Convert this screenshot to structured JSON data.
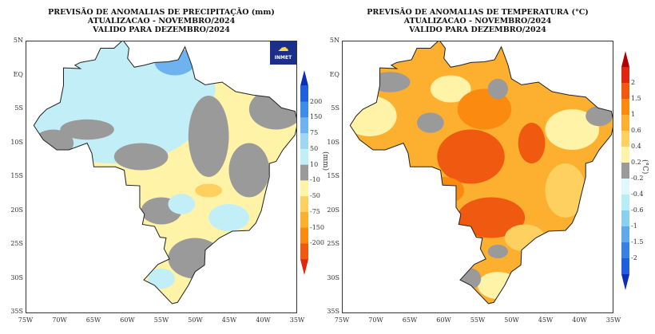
{
  "left_map": {
    "title_lines": [
      "PREVISÃO DE ANOMALIAS DE PRECIPITAÇÃO (mm)",
      "ATUALIZACAO - NOVEMBRO/2024",
      "VALIDO PARA DEZEMBRO/2024"
    ],
    "logo_text": "INMET",
    "units": "(mm)",
    "colorbar_labels": [
      "200",
      "150",
      "75",
      "50",
      "10",
      "-10",
      "-50",
      "-75",
      "-150",
      "-200"
    ],
    "colorbar_colors": [
      "#0a2fb8",
      "#1f5fdc",
      "#3f8be8",
      "#6fb2f0",
      "#9ed6f4",
      "#c2eef8",
      "#9a9a9a",
      "#fff3a8",
      "#fdd060",
      "#fdb030",
      "#fa8a10",
      "#f05a10",
      "#e02810"
    ]
  },
  "right_map": {
    "title_lines": [
      "PREVISÃO DE ANOMALIAS DE TEMPERATURA (°C)",
      "ATUALIZACAO - NOVEMBRO/2024",
      "VALIDO PARA DEZEMBRO/2024"
    ],
    "units": "(°C)",
    "colorbar_labels": [
      "2",
      "1.5",
      "1",
      "0.6",
      "0.4",
      "0.2",
      "-0.2",
      "-0.4",
      "-0.6",
      "-1",
      "-1.5",
      "-2"
    ],
    "colorbar_colors": [
      "#b00000",
      "#e02810",
      "#f05a10",
      "#fa8a10",
      "#fdb030",
      "#fdd060",
      "#fff3a8",
      "#9a9a9a",
      "#e0f8fc",
      "#b8ecf6",
      "#8cd0f0",
      "#60aaec",
      "#3a80e2",
      "#1f5fdc",
      "#0a2fb8"
    ]
  },
  "axes": {
    "lat_ticks": [
      "5N",
      "EQ",
      "5S",
      "10S",
      "15S",
      "20S",
      "25S",
      "30S",
      "35S"
    ],
    "lon_ticks": [
      "75W",
      "70W",
      "65W",
      "60W",
      "55W",
      "50W",
      "45W",
      "40W",
      "35W"
    ]
  }
}
